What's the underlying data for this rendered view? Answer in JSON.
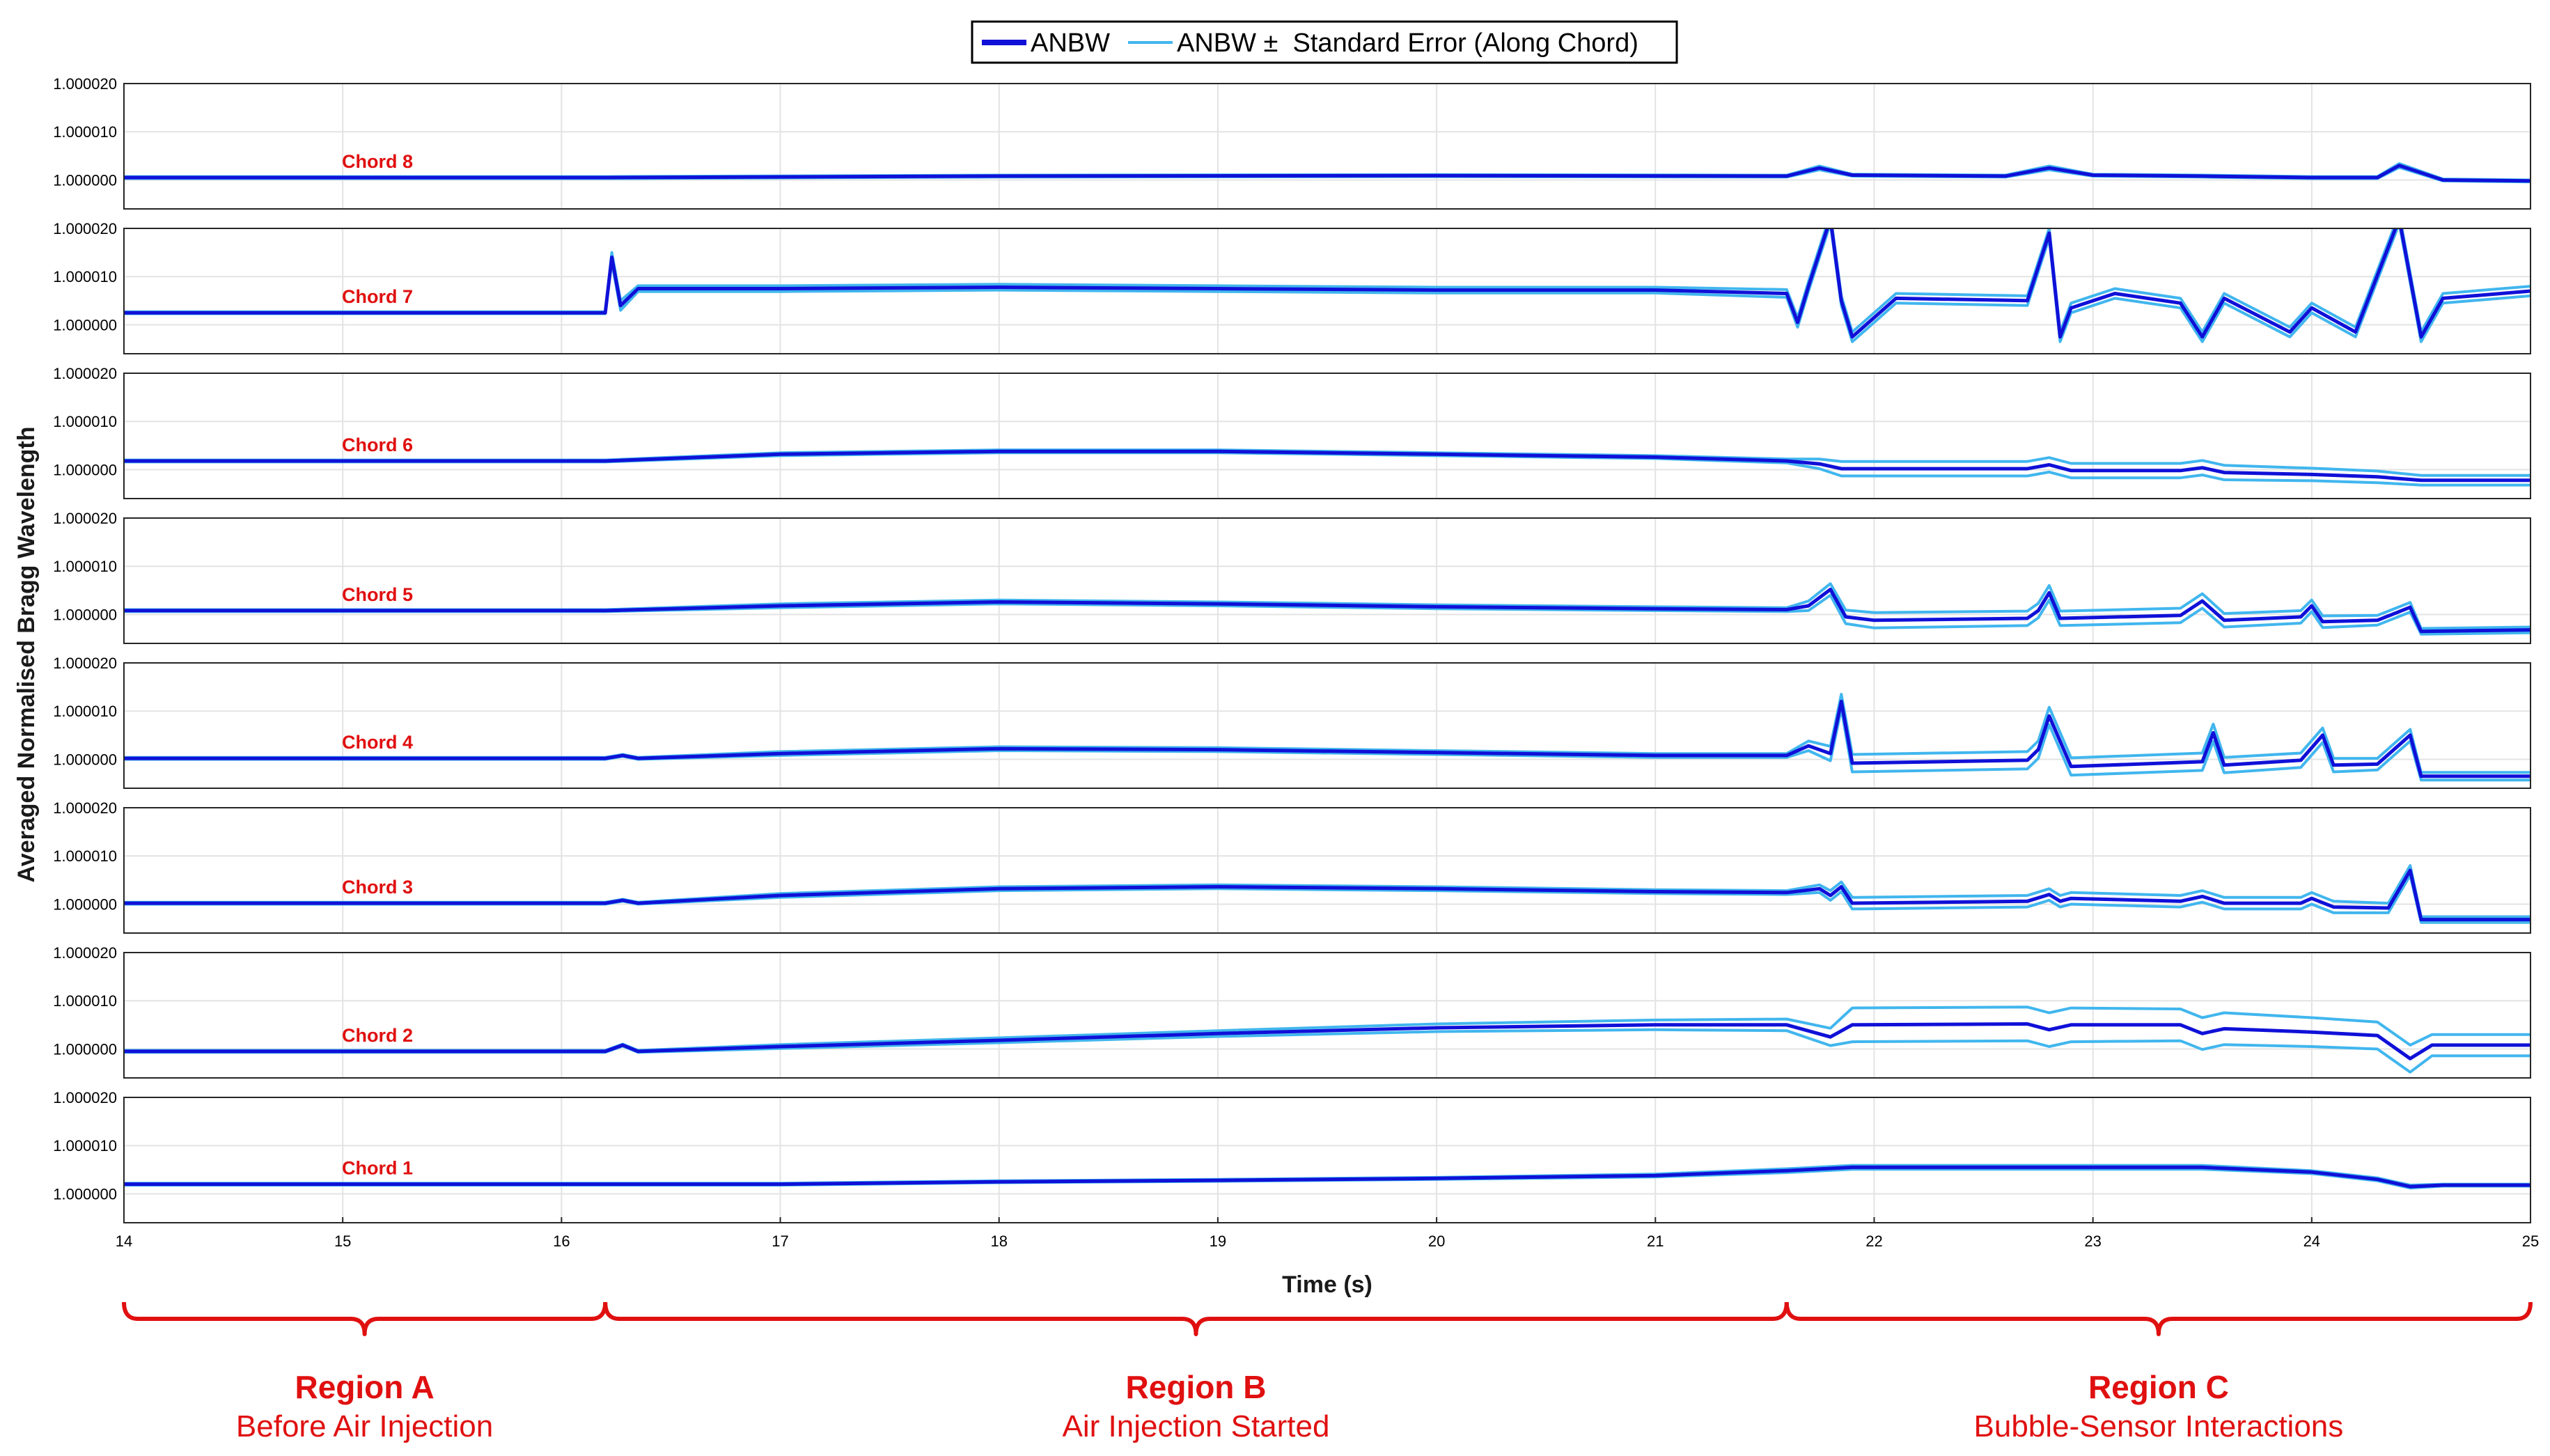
{
  "chart_data": {
    "type": "line",
    "ylabel": "Averaged Normalised Bragg Wavelength",
    "xlabel": "Time (s)",
    "xlim": [
      14,
      25
    ],
    "x_ticks": [
      "14",
      "15",
      "16",
      "17",
      "18",
      "19",
      "20",
      "21",
      "22",
      "23",
      "24",
      "25"
    ],
    "ylim": [
      0.999994,
      1.00002
    ],
    "y_ticks": [
      "1.000000",
      "1.000010",
      "1.000020"
    ],
    "grid": true,
    "legend_position": "top-center",
    "legend": [
      {
        "label": "ANBW",
        "color": "#1010d8"
      },
      {
        "label": "ANBW ±  Standard Error (Along Chord)",
        "color": "#41b6ee"
      }
    ],
    "colors": {
      "anbw": "#1010d8",
      "stderr": "#41b6ee",
      "annotation": "#e01010"
    },
    "panels": [
      {
        "chord": "Chord 8",
        "x": [
          14,
          16.2,
          18,
          20,
          21.6,
          21.75,
          21.9,
          22.6,
          22.8,
          23,
          23.5,
          24,
          24.3,
          24.4,
          24.6,
          25
        ],
        "y": [
          1.0000005,
          1.0000005,
          1.0000008,
          1.0000009,
          1.0000008,
          1.0000025,
          1.000001,
          1.0000008,
          1.0000025,
          1.000001,
          1.0000008,
          1.0000005,
          1.0000005,
          1.000003,
          1.0,
          0.9999998
        ],
        "stderr": [
          2e-07,
          2e-07,
          2e-07,
          2e-07,
          2e-07,
          4e-07,
          2e-07,
          2e-07,
          4e-07,
          2e-07,
          2e-07,
          2e-07,
          2e-07,
          4e-07,
          2e-07,
          2e-07
        ]
      },
      {
        "chord": "Chord 7",
        "x": [
          14,
          16.2,
          16.23,
          16.27,
          16.35,
          17,
          18,
          19,
          20,
          21,
          21.6,
          21.65,
          21.7,
          21.8,
          21.85,
          21.9,
          22.1,
          22.7,
          22.8,
          22.85,
          22.9,
          23.1,
          23.4,
          23.5,
          23.6,
          23.9,
          24,
          24.2,
          24.4,
          24.5,
          24.6,
          25
        ],
        "y": [
          1.0000025,
          1.0000025,
          1.000014,
          1.000004,
          1.0000075,
          1.0000075,
          1.0000078,
          1.0000075,
          1.0000072,
          1.0000072,
          1.0000065,
          1.0000005,
          1.000008,
          1.000022,
          1.000005,
          0.9999975,
          1.0000055,
          1.000005,
          1.000019,
          0.9999975,
          1.0000035,
          1.0000065,
          1.0000045,
          0.9999975,
          1.0000055,
          0.9999985,
          1.0000035,
          0.9999985,
          1.000022,
          0.9999975,
          1.0000055,
          1.000007
        ],
        "stderr": [
          2e-07,
          2e-07,
          1e-06,
          1e-06,
          6e-07,
          6e-07,
          6e-07,
          6e-07,
          6e-07,
          6e-07,
          8e-07,
          1e-06,
          1e-06,
          1e-06,
          1e-06,
          1e-06,
          1e-06,
          1e-06,
          1e-06,
          1e-06,
          1e-06,
          1e-06,
          1e-06,
          1e-06,
          1e-06,
          1e-06,
          1e-06,
          1e-06,
          1e-06,
          1e-06,
          1e-06,
          1e-06
        ]
      },
      {
        "chord": "Chord 6",
        "x": [
          14,
          16.2,
          17,
          18,
          19,
          20,
          21,
          21.6,
          21.75,
          21.85,
          22.7,
          22.8,
          22.9,
          23.4,
          23.5,
          23.6,
          24,
          24.3,
          24.5,
          25
        ],
        "y": [
          1.0000018,
          1.0000018,
          1.0000032,
          1.0000038,
          1.0000038,
          1.0000032,
          1.0000026,
          1.0000018,
          1.0000012,
          1.0000002,
          1.0000002,
          1.000001,
          0.9999998,
          0.9999998,
          1.0000004,
          0.9999994,
          0.999999,
          0.9999985,
          0.9999978,
          0.9999978
        ],
        "stderr": [
          2e-07,
          2e-07,
          3e-07,
          3e-07,
          3e-07,
          3e-07,
          3e-07,
          4e-07,
          1e-06,
          1.5e-06,
          1.5e-06,
          1.5e-06,
          1.5e-06,
          1.5e-06,
          1.5e-06,
          1.5e-06,
          1.3e-06,
          1.2e-06,
          1e-06,
          1e-06
        ]
      },
      {
        "chord": "Chord 5",
        "x": [
          14,
          16.2,
          17,
          18,
          19,
          20,
          21,
          21.6,
          21.7,
          21.8,
          21.87,
          22,
          22.7,
          22.75,
          22.8,
          22.85,
          23.4,
          23.5,
          23.6,
          23.95,
          24,
          24.05,
          24.3,
          24.45,
          24.5,
          25
        ],
        "y": [
          1.0000008,
          1.0000008,
          1.0000018,
          1.0000026,
          1.0000022,
          1.0000016,
          1.0000012,
          1.000001,
          1.0000018,
          1.0000052,
          0.9999995,
          0.9999988,
          0.9999992,
          1.0000008,
          1.0000045,
          0.9999992,
          0.9999998,
          1.0000028,
          0.9999988,
          0.9999995,
          1.0000018,
          0.9999985,
          0.9999988,
          1.0000015,
          0.9999965,
          0.9999968
        ],
        "stderr": [
          2e-07,
          2e-07,
          4e-07,
          4e-07,
          4e-07,
          4e-07,
          4e-07,
          4e-07,
          1e-06,
          1.2e-06,
          1.4e-06,
          1.6e-06,
          1.5e-06,
          1.5e-06,
          1.5e-06,
          1.5e-06,
          1.5e-06,
          1.5e-06,
          1.4e-06,
          1.3e-06,
          1.2e-06,
          1.2e-06,
          1e-06,
          1e-06,
          6e-07,
          6e-07
        ]
      },
      {
        "chord": "Chord 4",
        "x": [
          14,
          16.2,
          16.28,
          16.35,
          17,
          18,
          19,
          20,
          21,
          21.6,
          21.7,
          21.8,
          21.85,
          21.9,
          22.7,
          22.75,
          22.8,
          22.9,
          23.5,
          23.55,
          23.6,
          23.95,
          24.05,
          24.1,
          24.3,
          24.45,
          24.5,
          25
        ],
        "y": [
          1.0000002,
          1.0000002,
          1.0000008,
          1.0000002,
          1.0000012,
          1.0000022,
          1.000002,
          1.0000014,
          1.0000008,
          1.0000008,
          1.0000028,
          1.0000012,
          1.000012,
          0.9999992,
          0.9999998,
          1.000002,
          1.000009,
          0.9999985,
          0.9999995,
          1.0000055,
          0.9999988,
          0.9999998,
          1.000005,
          0.9999988,
          0.999999,
          1.000005,
          0.9999965,
          0.9999965
        ],
        "stderr": [
          2e-07,
          2e-07,
          2e-07,
          2e-07,
          4e-07,
          4e-07,
          4e-07,
          4e-07,
          4e-07,
          4e-07,
          1e-06,
          1.5e-06,
          1.5e-06,
          1.8e-06,
          1.8e-06,
          1.8e-06,
          1.8e-06,
          1.8e-06,
          1.8e-06,
          1.8e-06,
          1.6e-06,
          1.5e-06,
          1.5e-06,
          1.4e-06,
          1.2e-06,
          1.2e-06,
          8e-07,
          8e-07
        ]
      },
      {
        "chord": "Chord 3",
        "x": [
          14,
          16.2,
          16.28,
          16.35,
          17,
          18,
          19,
          20,
          21,
          21.6,
          21.75,
          21.8,
          21.85,
          21.9,
          22.7,
          22.8,
          22.85,
          22.9,
          23.4,
          23.5,
          23.6,
          23.95,
          24,
          24.1,
          24.35,
          24.45,
          24.5,
          25
        ],
        "y": [
          1.0000002,
          1.0000002,
          1.0000008,
          1.0000002,
          1.0000018,
          1.0000032,
          1.0000036,
          1.0000032,
          1.0000026,
          1.0000024,
          1.0000032,
          1.0000018,
          1.0000036,
          1.0000002,
          1.0000006,
          1.000002,
          1.0000006,
          1.0000012,
          1.0000006,
          1.0000016,
          1.0000002,
          1.0000002,
          1.0000012,
          0.9999994,
          0.9999992,
          1.000007,
          0.9999968,
          0.9999968
        ],
        "stderr": [
          2e-07,
          2e-07,
          2e-07,
          2e-07,
          4e-07,
          4e-07,
          4e-07,
          4e-07,
          4e-07,
          4e-07,
          8e-07,
          1e-06,
          1e-06,
          1.2e-06,
          1.2e-06,
          1.2e-06,
          1.2e-06,
          1.2e-06,
          1.2e-06,
          1.2e-06,
          1.2e-06,
          1.2e-06,
          1.2e-06,
          1.2e-06,
          1e-06,
          1e-06,
          6e-07,
          6e-07
        ]
      },
      {
        "chord": "Chord 2",
        "x": [
          14,
          16.2,
          16.28,
          16.35,
          17,
          18,
          19,
          20,
          21,
          21.6,
          21.8,
          21.9,
          22.7,
          22.8,
          22.9,
          23.4,
          23.5,
          23.6,
          24,
          24.3,
          24.45,
          24.55,
          25
        ],
        "y": [
          0.9999995,
          0.9999995,
          1.0000008,
          0.9999995,
          1.0000005,
          1.0000018,
          1.0000032,
          1.0000044,
          1.000005,
          1.000005,
          1.0000025,
          1.000005,
          1.0000052,
          1.000004,
          1.000005,
          1.000005,
          1.0000032,
          1.0000042,
          1.0000035,
          1.0000028,
          0.999998,
          1.0000008,
          1.0000008
        ],
        "stderr": [
          2e-07,
          2e-07,
          2e-07,
          2e-07,
          4e-07,
          5e-07,
          6e-07,
          8e-07,
          1e-06,
          1.2e-06,
          1.8e-06,
          3.5e-06,
          3.5e-06,
          3.5e-06,
          3.5e-06,
          3.3e-06,
          3.3e-06,
          3.3e-06,
          3e-06,
          2.8e-06,
          2.8e-06,
          2.2e-06,
          2.2e-06
        ]
      },
      {
        "chord": "Chord 1",
        "x": [
          14,
          16.2,
          17,
          18,
          19,
          20,
          21,
          21.6,
          21.9,
          22.5,
          23,
          23.5,
          24,
          24.3,
          24.45,
          24.6,
          25
        ],
        "y": [
          1.000002,
          1.000002,
          1.000002,
          1.0000025,
          1.0000028,
          1.0000032,
          1.0000038,
          1.0000048,
          1.0000055,
          1.0000055,
          1.0000055,
          1.0000055,
          1.0000045,
          1.000003,
          1.0000015,
          1.0000018,
          1.0000018
        ],
        "stderr": [
          2e-07,
          2e-07,
          2e-07,
          2e-07,
          2e-07,
          2e-07,
          3e-07,
          4e-07,
          4e-07,
          4e-07,
          4e-07,
          4e-07,
          3e-07,
          3e-07,
          3e-07,
          2e-07,
          2e-07
        ]
      }
    ],
    "annotations": [
      {
        "title": "Region A",
        "subtitle": "Before Air Injection",
        "x_range": [
          14,
          16.2
        ]
      },
      {
        "title": "Region B",
        "subtitle": "Air Injection Started",
        "x_range": [
          16.2,
          21.6
        ]
      },
      {
        "title": "Region C",
        "subtitle": "Bubble-Sensor Interactions",
        "x_range": [
          21.6,
          25
        ]
      }
    ]
  }
}
